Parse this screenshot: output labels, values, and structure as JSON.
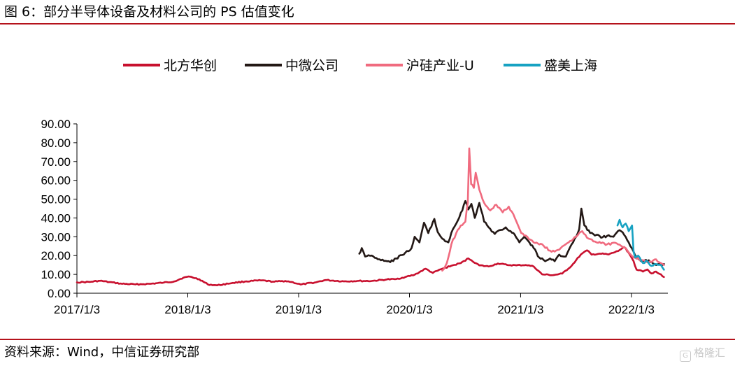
{
  "figure": {
    "title": "图 6：部分半导体设备及材料公司的 PS 估值变化",
    "source": "资料来源：Wind，中信证券研究部",
    "watermark": "格隆汇"
  },
  "colors": {
    "rule": "#b5121b",
    "北方华创": "#c8102e",
    "中微公司": "#231815",
    "沪硅产业-U": "#f06b7f",
    "盛美上海": "#17a2c2"
  },
  "chart_data": {
    "type": "line",
    "title": "",
    "xlabel": "",
    "ylabel": "",
    "ylim": [
      0,
      90
    ],
    "yticks": [
      "0.00",
      "10.00",
      "20.00",
      "30.00",
      "40.00",
      "50.00",
      "60.00",
      "70.00",
      "80.00",
      "90.00"
    ],
    "xlim": [
      "2017-01-03",
      "2022-04-20"
    ],
    "xticks": [
      {
        "date": "2017-01-03",
        "label": "2017/1/3"
      },
      {
        "date": "2018-01-03",
        "label": "2018/1/3"
      },
      {
        "date": "2019-01-03",
        "label": "2019/1/3"
      },
      {
        "date": "2020-01-03",
        "label": "2020/1/3"
      },
      {
        "date": "2021-01-03",
        "label": "2021/1/3"
      },
      {
        "date": "2022-01-03",
        "label": "2022/1/3"
      }
    ],
    "grid": false,
    "legend_position": "top",
    "series": [
      {
        "name": "北方华创",
        "color": "#c8102e",
        "points": [
          [
            "2017-01-03",
            5.8
          ],
          [
            "2017-02-15",
            6.0
          ],
          [
            "2017-03-20",
            6.6
          ],
          [
            "2017-04-20",
            5.9
          ],
          [
            "2017-06-01",
            5.0
          ],
          [
            "2017-07-15",
            4.7
          ],
          [
            "2017-09-01",
            5.0
          ],
          [
            "2017-10-15",
            5.6
          ],
          [
            "2017-11-20",
            6.3
          ],
          [
            "2017-12-20",
            8.3
          ],
          [
            "2018-01-10",
            8.8
          ],
          [
            "2018-02-10",
            7.4
          ],
          [
            "2018-03-10",
            4.7
          ],
          [
            "2018-04-10",
            4.2
          ],
          [
            "2018-06-01",
            5.5
          ],
          [
            "2018-07-15",
            6.3
          ],
          [
            "2018-09-01",
            6.8
          ],
          [
            "2018-10-15",
            6.1
          ],
          [
            "2018-11-20",
            6.5
          ],
          [
            "2018-12-10",
            6.0
          ],
          [
            "2019-01-10",
            4.6
          ],
          [
            "2019-03-01",
            5.8
          ],
          [
            "2019-04-01",
            7.0
          ],
          [
            "2019-06-01",
            6.3
          ],
          [
            "2019-07-15",
            6.5
          ],
          [
            "2019-09-01",
            6.5
          ],
          [
            "2019-10-20",
            7.3
          ],
          [
            "2019-11-20",
            7.5
          ],
          [
            "2019-12-20",
            8.6
          ],
          [
            "2020-01-20",
            9.8
          ],
          [
            "2020-02-25",
            13.0
          ],
          [
            "2020-03-20",
            10.8
          ],
          [
            "2020-04-20",
            13.0
          ],
          [
            "2020-05-20",
            14.6
          ],
          [
            "2020-06-20",
            16.0
          ],
          [
            "2020-07-15",
            18.5
          ],
          [
            "2020-07-25",
            17.5
          ],
          [
            "2020-08-20",
            14.8
          ],
          [
            "2020-09-20",
            14.2
          ],
          [
            "2020-10-20",
            15.8
          ],
          [
            "2020-11-20",
            15.0
          ],
          [
            "2020-12-20",
            14.8
          ],
          [
            "2021-01-20",
            15.0
          ],
          [
            "2021-02-15",
            14.2
          ],
          [
            "2021-03-15",
            10.0
          ],
          [
            "2021-04-20",
            9.6
          ],
          [
            "2021-05-20",
            10.4
          ],
          [
            "2021-06-20",
            14.6
          ],
          [
            "2021-07-20",
            20.5
          ],
          [
            "2021-08-10",
            22.8
          ],
          [
            "2021-08-25",
            20.5
          ],
          [
            "2021-09-20",
            21.0
          ],
          [
            "2021-10-20",
            20.6
          ],
          [
            "2021-11-20",
            22.4
          ],
          [
            "2021-12-10",
            24.6
          ],
          [
            "2021-12-25",
            21.5
          ],
          [
            "2022-01-10",
            17.0
          ],
          [
            "2022-01-20",
            12.5
          ],
          [
            "2022-02-10",
            11.5
          ],
          [
            "2022-02-25",
            12.6
          ],
          [
            "2022-03-10",
            10.5
          ],
          [
            "2022-03-25",
            11.5
          ],
          [
            "2022-04-10",
            10.0
          ],
          [
            "2022-04-20",
            8.6
          ]
        ]
      },
      {
        "name": "中微公司",
        "color": "#231815",
        "points": [
          [
            "2019-07-22",
            21.0
          ],
          [
            "2019-07-30",
            24.0
          ],
          [
            "2019-08-10",
            19.5
          ],
          [
            "2019-09-01",
            20.0
          ],
          [
            "2019-10-01",
            17.5
          ],
          [
            "2019-11-01",
            16.5
          ],
          [
            "2019-11-20",
            18.5
          ],
          [
            "2019-12-15",
            20.5
          ],
          [
            "2020-01-10",
            24.0
          ],
          [
            "2020-01-20",
            30.0
          ],
          [
            "2020-02-05",
            27.0
          ],
          [
            "2020-02-20",
            37.5
          ],
          [
            "2020-03-05",
            32.0
          ],
          [
            "2020-03-25",
            39.5
          ],
          [
            "2020-04-05",
            32.5
          ],
          [
            "2020-04-20",
            29.0
          ],
          [
            "2020-05-10",
            27.0
          ],
          [
            "2020-05-25",
            34.0
          ],
          [
            "2020-06-05",
            37.0
          ],
          [
            "2020-06-25",
            44.0
          ],
          [
            "2020-07-05",
            49.0
          ],
          [
            "2020-07-15",
            44.5
          ],
          [
            "2020-07-25",
            47.5
          ],
          [
            "2020-08-05",
            40.0
          ],
          [
            "2020-08-20",
            48.0
          ],
          [
            "2020-09-05",
            38.0
          ],
          [
            "2020-09-20",
            35.0
          ],
          [
            "2020-10-10",
            31.5
          ],
          [
            "2020-10-25",
            33.5
          ],
          [
            "2020-11-15",
            35.0
          ],
          [
            "2020-12-01",
            33.0
          ],
          [
            "2020-12-15",
            31.0
          ],
          [
            "2020-12-30",
            27.0
          ],
          [
            "2021-01-15",
            30.0
          ],
          [
            "2021-02-01",
            27.0
          ],
          [
            "2021-02-15",
            24.0
          ],
          [
            "2021-03-05",
            19.0
          ],
          [
            "2021-03-25",
            17.0
          ],
          [
            "2021-04-10",
            18.5
          ],
          [
            "2021-04-25",
            17.0
          ],
          [
            "2021-05-10",
            20.5
          ],
          [
            "2021-06-01",
            19.5
          ],
          [
            "2021-06-20",
            26.0
          ],
          [
            "2021-07-05",
            30.0
          ],
          [
            "2021-07-15",
            34.0
          ],
          [
            "2021-07-22",
            45.0
          ],
          [
            "2021-08-01",
            36.0
          ],
          [
            "2021-08-20",
            32.0
          ],
          [
            "2021-09-10",
            31.0
          ],
          [
            "2021-09-25",
            29.5
          ],
          [
            "2021-10-15",
            30.5
          ],
          [
            "2021-11-05",
            30.0
          ],
          [
            "2021-11-25",
            33.5
          ],
          [
            "2021-12-10",
            31.0
          ],
          [
            "2021-12-25",
            27.0
          ],
          [
            "2022-01-10",
            22.0
          ],
          [
            "2022-01-20",
            19.0
          ],
          [
            "2022-02-10",
            17.0
          ],
          [
            "2022-03-01",
            17.5
          ],
          [
            "2022-03-20",
            15.5
          ],
          [
            "2022-04-05",
            15.5
          ],
          [
            "2022-04-20",
            15.5
          ]
        ]
      },
      {
        "name": "沪硅产业-U",
        "color": "#f06b7f",
        "points": [
          [
            "2020-04-20",
            12.0
          ],
          [
            "2020-05-05",
            16.0
          ],
          [
            "2020-05-20",
            26.0
          ],
          [
            "2020-06-05",
            32.0
          ],
          [
            "2020-06-20",
            36.0
          ],
          [
            "2020-07-05",
            38.0
          ],
          [
            "2020-07-13",
            48.0
          ],
          [
            "2020-07-18",
            77.0
          ],
          [
            "2020-07-24",
            58.0
          ],
          [
            "2020-08-02",
            56.0
          ],
          [
            "2020-08-08",
            64.0
          ],
          [
            "2020-08-20",
            55.0
          ],
          [
            "2020-09-05",
            48.0
          ],
          [
            "2020-09-25",
            44.0
          ],
          [
            "2020-10-15",
            47.0
          ],
          [
            "2020-11-05",
            43.0
          ],
          [
            "2020-11-25",
            46.0
          ],
          [
            "2020-12-15",
            40.0
          ],
          [
            "2021-01-05",
            32.0
          ],
          [
            "2021-01-25",
            30.0
          ],
          [
            "2021-02-15",
            27.0
          ],
          [
            "2021-03-15",
            26.0
          ],
          [
            "2021-04-15",
            22.0
          ],
          [
            "2021-05-15",
            24.0
          ],
          [
            "2021-06-10",
            27.0
          ],
          [
            "2021-07-05",
            30.0
          ],
          [
            "2021-07-25",
            33.0
          ],
          [
            "2021-08-15",
            29.0
          ],
          [
            "2021-09-10",
            27.0
          ],
          [
            "2021-10-15",
            26.0
          ],
          [
            "2021-11-15",
            26.5
          ],
          [
            "2021-12-15",
            24.0
          ],
          [
            "2022-01-10",
            19.0
          ],
          [
            "2022-02-10",
            17.5
          ],
          [
            "2022-03-10",
            16.5
          ],
          [
            "2022-03-25",
            18.0
          ],
          [
            "2022-04-10",
            16.0
          ],
          [
            "2022-04-20",
            15.0
          ]
        ]
      },
      {
        "name": "盛美上海",
        "color": "#17a2c2",
        "points": [
          [
            "2021-11-18",
            36.0
          ],
          [
            "2021-11-25",
            39.0
          ],
          [
            "2021-12-05",
            35.0
          ],
          [
            "2021-12-15",
            37.0
          ],
          [
            "2021-12-25",
            33.0
          ],
          [
            "2022-01-05",
            36.0
          ],
          [
            "2022-01-10",
            22.0
          ],
          [
            "2022-01-15",
            19.0
          ],
          [
            "2022-01-25",
            20.0
          ],
          [
            "2022-02-10",
            16.0
          ],
          [
            "2022-02-25",
            17.0
          ],
          [
            "2022-03-10",
            14.5
          ],
          [
            "2022-03-25",
            15.5
          ],
          [
            "2022-04-10",
            15.0
          ],
          [
            "2022-04-20",
            12.5
          ]
        ]
      }
    ]
  }
}
